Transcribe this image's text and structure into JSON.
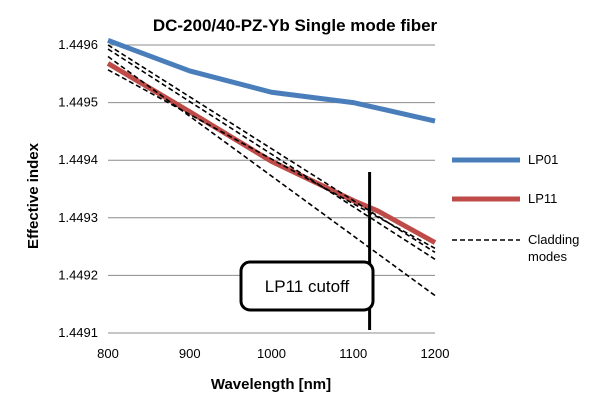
{
  "chart_data": {
    "type": "line",
    "title": "DC-200/40-PZ-Yb Single mode fiber",
    "xlabel": "Wavelength [nm]",
    "ylabel": "Effective index",
    "xlim": [
      800,
      1200
    ],
    "ylim": [
      1.4491,
      1.4496
    ],
    "xticks": [
      "800",
      "900",
      "1000",
      "1100",
      "1200"
    ],
    "yticks": [
      "1.4491",
      "1.4492",
      "1.4493",
      "1.4494",
      "1.4495",
      "1.4496"
    ],
    "grid": "horizontal",
    "legend_position": "right",
    "series": [
      {
        "name": "LP01",
        "color": "#4a7ebb",
        "style": "solid-thick",
        "points": [
          [
            800,
            1.449608
          ],
          [
            900,
            1.449555
          ],
          [
            1000,
            1.449518
          ],
          [
            1100,
            1.4495
          ],
          [
            1200,
            1.449468
          ]
        ]
      },
      {
        "name": "LP11",
        "color": "#be4b48",
        "style": "solid-thick",
        "points": [
          [
            800,
            1.449568
          ],
          [
            900,
            1.449484
          ],
          [
            1000,
            1.449398
          ],
          [
            1100,
            1.44933
          ],
          [
            1130,
            1.449312
          ],
          [
            1200,
            1.449257
          ]
        ]
      },
      {
        "name": "Cladding modes",
        "color": "#000000",
        "style": "dashed",
        "lines": [
          [
            [
              800,
              1.4496
            ],
            [
              1200,
              1.44924
            ]
          ],
          [
            [
              800,
              1.449593
            ],
            [
              1200,
              1.449228
            ]
          ],
          [
            [
              800,
              1.44958
            ],
            [
              1200,
              1.449165
            ]
          ],
          [
            [
              800,
              1.449557
            ],
            [
              1200,
              1.449247
            ]
          ]
        ]
      }
    ],
    "cutoff": {
      "x": 1120,
      "label": "LP11 cutoff"
    }
  },
  "legend": [
    {
      "label": "LP01",
      "color": "#4a7ebb",
      "style": "solid"
    },
    {
      "label": "LP11",
      "color": "#be4b48",
      "style": "solid"
    },
    {
      "label": "Cladding\nmodes",
      "color": "#000000",
      "style": "dashed"
    }
  ]
}
